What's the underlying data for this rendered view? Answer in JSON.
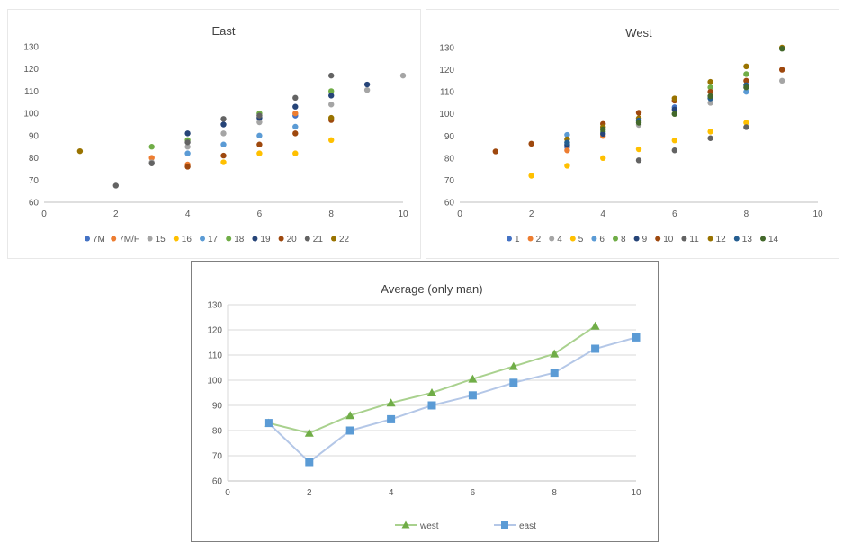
{
  "chart_data": [
    {
      "type": "scatter",
      "title": "East",
      "xlim": [
        0,
        10
      ],
      "ylim": [
        60,
        130
      ],
      "xticks": [
        0,
        2,
        4,
        6,
        8,
        10
      ],
      "yticks": [
        60,
        70,
        80,
        90,
        100,
        110,
        120,
        130
      ],
      "legend_position": "bottom",
      "series": [
        {
          "name": "7M",
          "color": "#4472C4",
          "points": [
            [
              7,
              99
            ]
          ]
        },
        {
          "name": "7M/F",
          "color": "#ED7D31",
          "points": [
            [
              3,
              80
            ],
            [
              4,
              77
            ],
            [
              7,
              100
            ]
          ]
        },
        {
          "name": "15",
          "color": "#A5A5A5",
          "points": [
            [
              3,
              78
            ],
            [
              4,
              85
            ],
            [
              5,
              91
            ],
            [
              6,
              96
            ],
            [
              8,
              104
            ],
            [
              9,
              110.5
            ],
            [
              10,
              117
            ]
          ]
        },
        {
          "name": "16",
          "color": "#FFC000",
          "points": [
            [
              5,
              78
            ],
            [
              6,
              82
            ],
            [
              7,
              82
            ],
            [
              8,
              88
            ]
          ]
        },
        {
          "name": "17",
          "color": "#5B9BD5",
          "points": [
            [
              4,
              82
            ],
            [
              5,
              86
            ],
            [
              6,
              90
            ],
            [
              7,
              94
            ]
          ]
        },
        {
          "name": "18",
          "color": "#70AD47",
          "points": [
            [
              3,
              85
            ],
            [
              4,
              88
            ],
            [
              6,
              100
            ],
            [
              8,
              110
            ]
          ]
        },
        {
          "name": "19",
          "color": "#264478",
          "points": [
            [
              4,
              91
            ],
            [
              5,
              95
            ],
            [
              6,
              98
            ],
            [
              7,
              103
            ],
            [
              8,
              108
            ],
            [
              9,
              113
            ]
          ]
        },
        {
          "name": "20",
          "color": "#9E480E",
          "points": [
            [
              4,
              76
            ],
            [
              5,
              81
            ],
            [
              6,
              86
            ],
            [
              7,
              91
            ],
            [
              8,
              97
            ]
          ]
        },
        {
          "name": "21",
          "color": "#636363",
          "points": [
            [
              2,
              67.5
            ],
            [
              3,
              77.5
            ],
            [
              4,
              87
            ],
            [
              5,
              97.5
            ],
            [
              6,
              99
            ],
            [
              7,
              107
            ],
            [
              8,
              117
            ]
          ]
        },
        {
          "name": "22",
          "color": "#997300",
          "points": [
            [
              1,
              83
            ],
            [
              8,
              98
            ]
          ]
        }
      ]
    },
    {
      "type": "scatter",
      "title": "West",
      "xlim": [
        0,
        10
      ],
      "ylim": [
        60,
        130
      ],
      "xticks": [
        0,
        2,
        4,
        6,
        8,
        10
      ],
      "yticks": [
        60,
        70,
        80,
        90,
        100,
        110,
        120,
        130
      ],
      "legend_position": "bottom",
      "series": [
        {
          "name": "1",
          "color": "#4472C4",
          "points": [
            [
              3,
              85
            ],
            [
              6,
              103
            ]
          ]
        },
        {
          "name": "2",
          "color": "#ED7D31",
          "points": [
            [
              3,
              83.5
            ],
            [
              4,
              90
            ]
          ]
        },
        {
          "name": "4",
          "color": "#A5A5A5",
          "points": [
            [
              5,
              95
            ],
            [
              7,
              105
            ],
            [
              9,
              115
            ]
          ]
        },
        {
          "name": "5",
          "color": "#FFC000",
          "points": [
            [
              2,
              72
            ],
            [
              3,
              76.5
            ],
            [
              4,
              80
            ],
            [
              5,
              84
            ],
            [
              6,
              88
            ],
            [
              7,
              92
            ],
            [
              8,
              96
            ]
          ]
        },
        {
          "name": "6",
          "color": "#5B9BD5",
          "points": [
            [
              3,
              90.5
            ],
            [
              8,
              110
            ]
          ]
        },
        {
          "name": "8",
          "color": "#70AD47",
          "points": [
            [
              4,
              92
            ],
            [
              6,
              100
            ],
            [
              7,
              112
            ],
            [
              8,
              118
            ]
          ]
        },
        {
          "name": "9",
          "color": "#264478",
          "points": [
            [
              3,
              86
            ],
            [
              4,
              91
            ],
            [
              6,
              102
            ]
          ]
        },
        {
          "name": "10",
          "color": "#9E480E",
          "points": [
            [
              1,
              83
            ],
            [
              2,
              86.5
            ],
            [
              4,
              95.5
            ],
            [
              5,
              100.5
            ],
            [
              6,
              106
            ],
            [
              7,
              110
            ],
            [
              8,
              115
            ],
            [
              9,
              120
            ]
          ]
        },
        {
          "name": "11",
          "color": "#636363",
          "points": [
            [
              5,
              79
            ],
            [
              6,
              83.5
            ],
            [
              7,
              89
            ],
            [
              8,
              94
            ]
          ]
        },
        {
          "name": "12",
          "color": "#997300",
          "points": [
            [
              3,
              88.5
            ],
            [
              4,
              94
            ],
            [
              5,
              98
            ],
            [
              6,
              107
            ],
            [
              7,
              114.5
            ],
            [
              8,
              121.5
            ],
            [
              9,
              130
            ]
          ]
        },
        {
          "name": "13",
          "color": "#255E91",
          "points": [
            [
              3,
              87
            ],
            [
              5,
              97
            ],
            [
              7,
              107
            ],
            [
              8,
              113
            ]
          ]
        },
        {
          "name": "14",
          "color": "#43682B",
          "points": [
            [
              4,
              93
            ],
            [
              5,
              96
            ],
            [
              6,
              100
            ],
            [
              7,
              108
            ],
            [
              8,
              112
            ],
            [
              9,
              129.5
            ]
          ]
        }
      ]
    },
    {
      "type": "line",
      "title": "Average (only man)",
      "xlim": [
        0,
        10
      ],
      "ylim": [
        60,
        130
      ],
      "xticks": [
        0,
        2,
        4,
        6,
        8,
        10
      ],
      "yticks": [
        60,
        70,
        80,
        90,
        100,
        110,
        120,
        130
      ],
      "gridlines": true,
      "legend_position": "bottom",
      "series": [
        {
          "name": "west",
          "color": "#A9D18E",
          "marker": "triangle",
          "marker_color": "#70AD47",
          "x": [
            1,
            2,
            3,
            4,
            5,
            6,
            7,
            8,
            9
          ],
          "values": [
            83,
            79,
            86,
            91,
            95,
            100.5,
            105.5,
            110.5,
            121.5
          ]
        },
        {
          "name": "east",
          "color": "#B4C7E7",
          "marker": "square",
          "marker_color": "#5B9BD5",
          "x": [
            1,
            2,
            3,
            4,
            5,
            6,
            7,
            8,
            9,
            10
          ],
          "values": [
            83,
            67.5,
            80,
            84.5,
            90,
            94,
            99,
            103,
            112.5,
            117
          ]
        }
      ]
    }
  ]
}
